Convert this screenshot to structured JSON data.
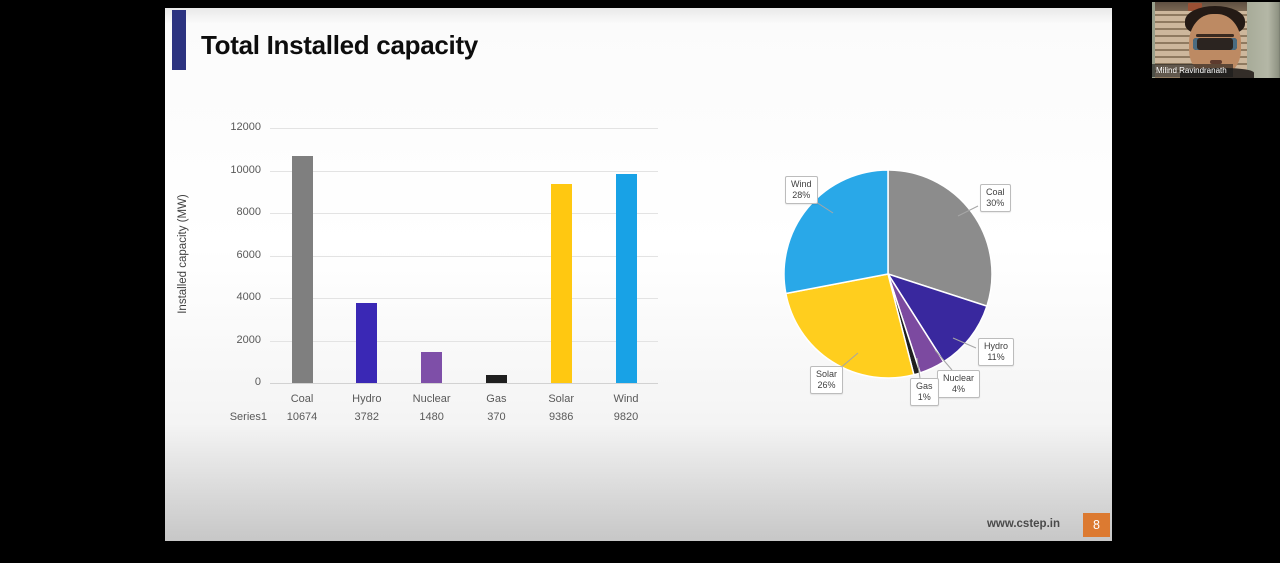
{
  "window": {
    "background": "#000000"
  },
  "webcam": {
    "name": "Milind Ravindranath"
  },
  "slide": {
    "title": "Total Installed capacity",
    "accent_color": "#2C3380",
    "footer": {
      "url": "www.cstep.in",
      "page": "8",
      "page_badge_color": "#DC7A31"
    }
  },
  "chart_data": [
    {
      "type": "bar",
      "title": "",
      "xlabel": "",
      "ylabel": "Installed capacity (MW)",
      "categories": [
        "Coal",
        "Hydro",
        "Nuclear",
        "Gas",
        "Solar",
        "Wind"
      ],
      "series": [
        {
          "name": "Series1",
          "values": [
            10674,
            3782,
            1480,
            370,
            9386,
            9820
          ]
        }
      ],
      "ylim": [
        0,
        12000
      ],
      "yticks": [
        0,
        2000,
        4000,
        6000,
        8000,
        10000,
        12000
      ],
      "grid": true,
      "legend_position": "bottom-data-table",
      "bar_colors": [
        "#7F7F7F",
        "#3A28B5",
        "#7E4FA8",
        "#1F1F1F",
        "#FFC811",
        "#18A2E6"
      ]
    },
    {
      "type": "pie",
      "labels": [
        "Coal",
        "Hydro",
        "Nuclear",
        "Gas",
        "Solar",
        "Wind"
      ],
      "values": [
        30,
        11,
        4,
        1,
        26,
        28
      ],
      "value_suffix": "%",
      "colors": [
        "#8C8C8C",
        "#39289E",
        "#7C4AA0",
        "#1F1F1F",
        "#FFCE1E",
        "#29A8E8"
      ],
      "start_angle_deg": 0,
      "direction": "clockwise",
      "label_style": "callout-boxes-with-leader-lines"
    }
  ]
}
